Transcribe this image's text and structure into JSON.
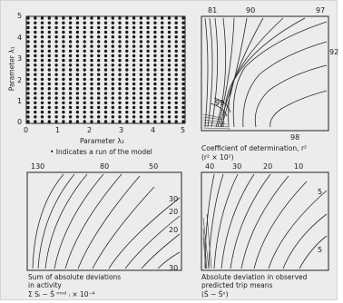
{
  "figure": {
    "grid_panel": {
      "y_ticks": [
        "5",
        "4",
        "3",
        "2",
        "1",
        "0"
      ],
      "x_ticks": [
        "0",
        "1",
        "2",
        "3",
        "4",
        "5"
      ],
      "y_axis_label": "Parameter λ₁",
      "x_axis_label": "Parameter λ₂",
      "legend_text": "• Indicates a run of the model"
    },
    "panel_r2": {
      "contour_labels": [
        "81",
        "90",
        "97",
        "92",
        "99",
        "98"
      ],
      "caption_line1": "Coefficient of determination, r²",
      "caption_line2": "(r² × 10²)"
    },
    "panel_sum_abs": {
      "contour_labels": [
        "130",
        "80",
        "50",
        "30",
        "20",
        "20",
        "30"
      ],
      "caption_line1": "Sum of absolute deviations",
      "caption_line2": "in activity",
      "caption_line3": "Σ Sᵢ − Ŝ ᵐᵒᵈ ᵢ × 10⁻⁴"
    },
    "panel_abs_dev": {
      "contour_labels": [
        "40",
        "30",
        "20",
        "10",
        "5",
        "5"
      ],
      "caption_line1": "Absolute deviation in observed",
      "caption_line2": "predicted trip means",
      "caption_line3": "(Ŝ − Ŝᵒ)"
    }
  }
}
